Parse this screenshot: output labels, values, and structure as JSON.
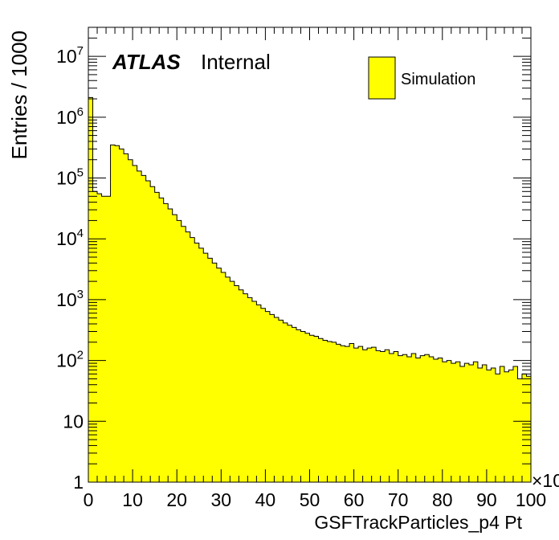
{
  "chart_data": {
    "type": "bar",
    "title": "",
    "xlabel": "GSFTrackParticles_p4 Pt",
    "ylabel": "Entries / 1000",
    "x_multiplier_label": "×10",
    "xlim": [
      0,
      100
    ],
    "ylim": [
      1,
      30000000
    ],
    "y_scale": "log",
    "x_ticks": [
      "0",
      "10",
      "20",
      "30",
      "40",
      "50",
      "60",
      "70",
      "80",
      "90",
      "100"
    ],
    "y_ticks": [
      {
        "base": "1",
        "exp": ""
      },
      {
        "base": "10",
        "exp": ""
      },
      {
        "base": "10",
        "exp": "2"
      },
      {
        "base": "10",
        "exp": "3"
      },
      {
        "base": "10",
        "exp": "4"
      },
      {
        "base": "10",
        "exp": "5"
      },
      {
        "base": "10",
        "exp": "6"
      },
      {
        "base": "10",
        "exp": "7"
      }
    ],
    "bin_width": 1,
    "series": [
      {
        "name": "Simulation",
        "color": "#ffff00",
        "values": [
          2100000,
          60000,
          55000,
          50000,
          50000,
          350000,
          340000,
          300000,
          250000,
          200000,
          160000,
          130000,
          110000,
          90000,
          72000,
          58000,
          47000,
          38000,
          31000,
          25000,
          20000,
          16000,
          13000,
          10500,
          8500,
          7000,
          5800,
          4800,
          4000,
          3300,
          2800,
          2350,
          2000,
          1700,
          1450,
          1250,
          1080,
          940,
          820,
          720,
          640,
          570,
          510,
          460,
          415,
          380,
          350,
          320,
          300,
          280,
          260,
          250,
          230,
          215,
          205,
          200,
          185,
          175,
          170,
          190,
          160,
          170,
          150,
          160,
          165,
          145,
          140,
          150,
          130,
          140,
          120,
          125,
          115,
          130,
          110,
          120,
          125,
          115,
          105,
          110,
          95,
          100,
          90,
          95,
          80,
          90,
          85,
          95,
          75,
          85,
          70,
          75,
          60,
          80,
          65,
          70,
          80,
          50,
          60,
          55
        ]
      }
    ],
    "legend_position": "top-right",
    "annotations": {
      "experiment": "ATLAS",
      "status": "Internal"
    }
  }
}
